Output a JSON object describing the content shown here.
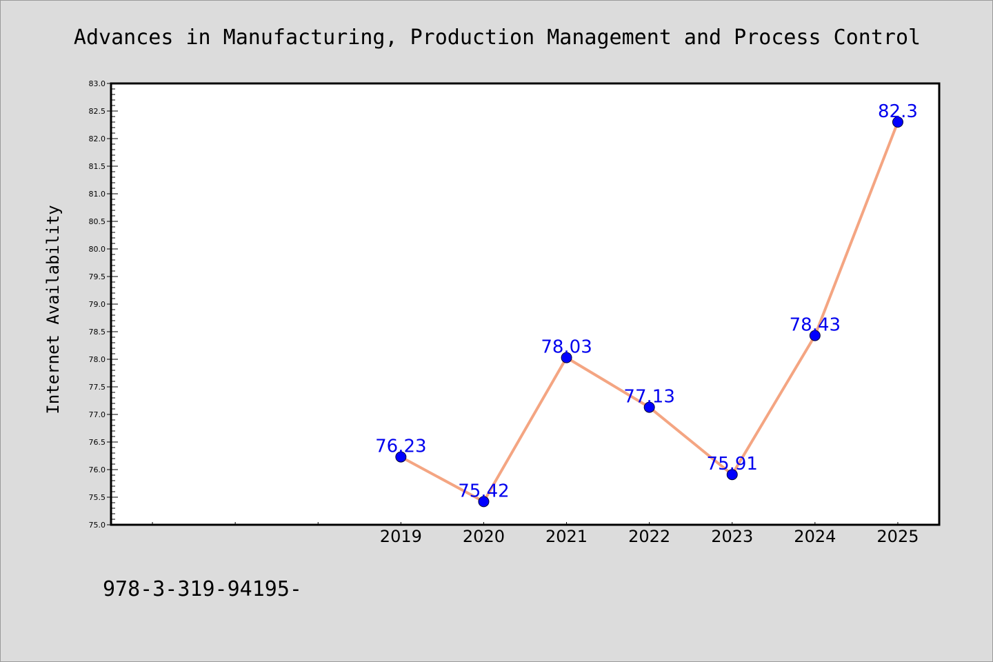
{
  "chart_data": {
    "type": "line",
    "title": "Advances in Manufacturing, Production Management and Process Control",
    "xlabel": "",
    "ylabel": "Internet Availability",
    "categories": [
      "2019",
      "2020",
      "2021",
      "2022",
      "2023",
      "2024",
      "2025"
    ],
    "x_range": [
      2015.5,
      2025.5
    ],
    "series": [
      {
        "values": [
          76.23,
          75.42,
          78.03,
          77.13,
          75.91,
          78.43,
          82.3
        ],
        "labels": [
          "76.23",
          "75.42",
          "78.03",
          "77.13",
          "75.91",
          "78.43",
          "82.3"
        ]
      }
    ],
    "ylim": [
      75.0,
      83.0
    ],
    "yticks": [
      "75.0",
      "75.5",
      "76.0",
      "76.5",
      "77.0",
      "77.5",
      "78.0",
      "78.5",
      "79.0",
      "79.5",
      "80.0",
      "80.5",
      "81.0",
      "81.5",
      "82.0",
      "82.5",
      "83.0"
    ],
    "grid": false,
    "line_color": "#f4a582",
    "marker_color": "#0000ff",
    "label_color": "#0000ee",
    "background": "#dcdcdc"
  },
  "footer": {
    "text": "978-3-319-94195-"
  }
}
